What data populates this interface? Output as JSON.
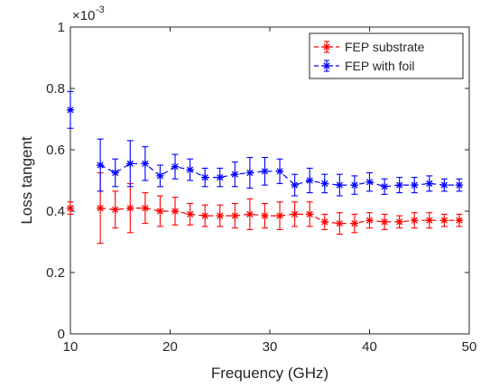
{
  "chart_data": {
    "type": "line",
    "xlabel": "Frequency (GHz)",
    "ylabel": "Loss tangent",
    "xlim": [
      10,
      50
    ],
    "ylim": [
      0,
      1
    ],
    "y_multiplier": "×10",
    "y_multiplier_exp": "-3",
    "xticks": [
      "10",
      "20",
      "30",
      "40",
      "50"
    ],
    "yticks": [
      "0",
      "0.2",
      "0.4",
      "0.6",
      "0.8",
      "1"
    ],
    "grid": false,
    "legend_position": "top-right",
    "series": [
      {
        "name": "FEP substrate",
        "color": "#ff0000",
        "marker": "asterisk",
        "line": "dashed",
        "points": [
          {
            "x": 10.0,
            "y": 0.41,
            "err": 0.02,
            "connect": false
          },
          {
            "x": 13.0,
            "y": 0.41,
            "err": 0.115,
            "connect": true
          },
          {
            "x": 14.5,
            "y": 0.405,
            "err": 0.06,
            "connect": true
          },
          {
            "x": 16.0,
            "y": 0.41,
            "err": 0.08,
            "connect": true
          },
          {
            "x": 17.5,
            "y": 0.41,
            "err": 0.05,
            "connect": true
          },
          {
            "x": 19.0,
            "y": 0.4,
            "err": 0.05,
            "connect": true
          },
          {
            "x": 20.5,
            "y": 0.4,
            "err": 0.045,
            "connect": true
          },
          {
            "x": 22.0,
            "y": 0.39,
            "err": 0.035,
            "connect": true
          },
          {
            "x": 23.5,
            "y": 0.385,
            "err": 0.035,
            "connect": true
          },
          {
            "x": 25.0,
            "y": 0.385,
            "err": 0.035,
            "connect": true
          },
          {
            "x": 26.5,
            "y": 0.385,
            "err": 0.04,
            "connect": true
          },
          {
            "x": 28.0,
            "y": 0.39,
            "err": 0.05,
            "connect": true
          },
          {
            "x": 29.5,
            "y": 0.385,
            "err": 0.04,
            "connect": true
          },
          {
            "x": 31.0,
            "y": 0.385,
            "err": 0.045,
            "connect": true
          },
          {
            "x": 32.5,
            "y": 0.39,
            "err": 0.04,
            "connect": true
          },
          {
            "x": 34.0,
            "y": 0.39,
            "err": 0.04,
            "connect": true
          },
          {
            "x": 35.5,
            "y": 0.365,
            "err": 0.025,
            "connect": true
          },
          {
            "x": 37.0,
            "y": 0.36,
            "err": 0.035,
            "connect": true
          },
          {
            "x": 38.5,
            "y": 0.36,
            "err": 0.03,
            "connect": true
          },
          {
            "x": 40.0,
            "y": 0.37,
            "err": 0.025,
            "connect": true
          },
          {
            "x": 41.5,
            "y": 0.365,
            "err": 0.025,
            "connect": true
          },
          {
            "x": 43.0,
            "y": 0.365,
            "err": 0.02,
            "connect": true
          },
          {
            "x": 44.5,
            "y": 0.37,
            "err": 0.025,
            "connect": true
          },
          {
            "x": 46.0,
            "y": 0.37,
            "err": 0.025,
            "connect": true
          },
          {
            "x": 47.5,
            "y": 0.37,
            "err": 0.02,
            "connect": true
          },
          {
            "x": 49.0,
            "y": 0.37,
            "err": 0.02,
            "connect": true
          }
        ]
      },
      {
        "name": "FEP with foil",
        "color": "#0000ff",
        "marker": "asterisk",
        "line": "dashed",
        "points": [
          {
            "x": 10.0,
            "y": 0.73,
            "err": 0.06,
            "connect": false
          },
          {
            "x": 13.0,
            "y": 0.55,
            "err": 0.085,
            "connect": true
          },
          {
            "x": 14.5,
            "y": 0.525,
            "err": 0.045,
            "connect": true
          },
          {
            "x": 16.0,
            "y": 0.555,
            "err": 0.075,
            "connect": true
          },
          {
            "x": 17.5,
            "y": 0.555,
            "err": 0.055,
            "connect": true
          },
          {
            "x": 19.0,
            "y": 0.515,
            "err": 0.035,
            "connect": true
          },
          {
            "x": 20.5,
            "y": 0.545,
            "err": 0.04,
            "connect": true
          },
          {
            "x": 22.0,
            "y": 0.535,
            "err": 0.035,
            "connect": true
          },
          {
            "x": 23.5,
            "y": 0.51,
            "err": 0.03,
            "connect": true
          },
          {
            "x": 25.0,
            "y": 0.51,
            "err": 0.03,
            "connect": true
          },
          {
            "x": 26.5,
            "y": 0.52,
            "err": 0.04,
            "connect": true
          },
          {
            "x": 28.0,
            "y": 0.525,
            "err": 0.05,
            "connect": true
          },
          {
            "x": 29.5,
            "y": 0.53,
            "err": 0.045,
            "connect": true
          },
          {
            "x": 31.0,
            "y": 0.53,
            "err": 0.04,
            "connect": true
          },
          {
            "x": 32.5,
            "y": 0.485,
            "err": 0.035,
            "connect": true
          },
          {
            "x": 34.0,
            "y": 0.5,
            "err": 0.04,
            "connect": true
          },
          {
            "x": 35.5,
            "y": 0.49,
            "err": 0.03,
            "connect": true
          },
          {
            "x": 37.0,
            "y": 0.485,
            "err": 0.035,
            "connect": true
          },
          {
            "x": 38.5,
            "y": 0.485,
            "err": 0.03,
            "connect": true
          },
          {
            "x": 40.0,
            "y": 0.495,
            "err": 0.03,
            "connect": true
          },
          {
            "x": 41.5,
            "y": 0.48,
            "err": 0.025,
            "connect": true
          },
          {
            "x": 43.0,
            "y": 0.485,
            "err": 0.025,
            "connect": true
          },
          {
            "x": 44.5,
            "y": 0.485,
            "err": 0.025,
            "connect": true
          },
          {
            "x": 46.0,
            "y": 0.49,
            "err": 0.025,
            "connect": true
          },
          {
            "x": 47.5,
            "y": 0.485,
            "err": 0.02,
            "connect": true
          },
          {
            "x": 49.0,
            "y": 0.485,
            "err": 0.02,
            "connect": true
          }
        ]
      }
    ]
  }
}
